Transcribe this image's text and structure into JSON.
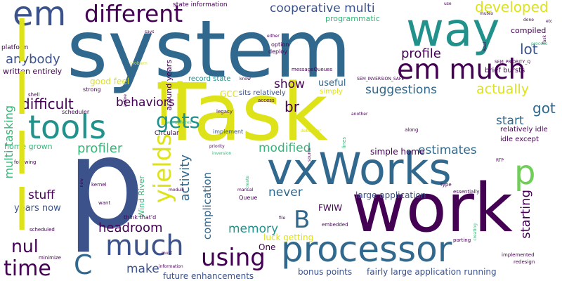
{
  "background": "#ffffff",
  "palette": {
    "dark_purple": "#440154",
    "indigo": "#3b528b",
    "blue": "#31688e",
    "teal": "#21918c",
    "green": "#35b779",
    "lime": "#6ece58",
    "yellow": "#dde318"
  },
  "words": [
    {
      "text": "system",
      "color": "#31688e"
    },
    {
      "text": "Task",
      "color": "#dde318"
    },
    {
      "text": "p",
      "color": "#3b528b"
    },
    {
      "text": "work",
      "color": "#440154"
    },
    {
      "text": "vxWorks",
      "color": "#31688e"
    },
    {
      "text": "processor",
      "color": "#31688e"
    },
    {
      "text": "way",
      "color": "#21918c"
    },
    {
      "text": "li",
      "color": "#dde318"
    },
    {
      "text": "em",
      "color": "#3b528b"
    },
    {
      "text": "different",
      "color": "#440154"
    },
    {
      "text": "tools",
      "color": "#21918c"
    },
    {
      "text": "em much",
      "color": "#440154"
    },
    {
      "text": "gets",
      "color": "#21918c"
    },
    {
      "text": "yields",
      "color": "#dde318"
    },
    {
      "text": "much",
      "color": "#3b528b"
    },
    {
      "text": "using",
      "color": "#440154"
    },
    {
      "text": "time",
      "color": "#440154"
    },
    {
      "text": "nul",
      "color": "#440154"
    },
    {
      "text": "C",
      "color": "#31688e"
    },
    {
      "text": "B",
      "color": "#31688e"
    },
    {
      "text": "p",
      "color": "#6ece58"
    },
    {
      "text": "cooperative multi",
      "color": "#3b528b"
    },
    {
      "text": "developed",
      "color": "#dde318"
    },
    {
      "text": "anybody",
      "color": "#3b528b"
    },
    {
      "text": "lot",
      "color": "#3b528b"
    },
    {
      "text": "profile",
      "color": "#440154"
    },
    {
      "text": "suggestions",
      "color": "#31688e"
    },
    {
      "text": "actually",
      "color": "#dde318"
    },
    {
      "text": "show",
      "color": "#440154"
    },
    {
      "text": "br",
      "color": "#440154"
    },
    {
      "text": "difficult",
      "color": "#440154"
    },
    {
      "text": "behaviors",
      "color": "#440154"
    },
    {
      "text": "got",
      "color": "#31688e"
    },
    {
      "text": "start",
      "color": "#31688e"
    },
    {
      "text": "modified",
      "color": "#35b779"
    },
    {
      "text": "estimates",
      "color": "#31688e"
    },
    {
      "text": "profiler",
      "color": "#35b779"
    },
    {
      "text": "activity",
      "color": "#31688e"
    },
    {
      "text": "headroom",
      "color": "#440154"
    },
    {
      "text": "never",
      "color": "#31688e"
    },
    {
      "text": "memory",
      "color": "#21918c"
    },
    {
      "text": "starting",
      "color": "#440154"
    },
    {
      "text": "make",
      "color": "#3b528b"
    },
    {
      "text": "multi tasking",
      "color": "#35b779"
    },
    {
      "text": "stuff",
      "color": "#440154"
    },
    {
      "text": "years now",
      "color": "#3b528b"
    },
    {
      "text": "complication",
      "color": "#31688e"
    },
    {
      "text": "future enhancements",
      "color": "#3b528b"
    },
    {
      "text": "bonus points",
      "color": "#3b528b"
    },
    {
      "text": "fairly large application running",
      "color": "#3b528b"
    },
    {
      "text": "luck getting",
      "color": "#dde318"
    },
    {
      "text": "One",
      "color": "#440154"
    },
    {
      "text": "FWIW",
      "color": "#440154"
    },
    {
      "text": "large application",
      "color": "#3b528b"
    },
    {
      "text": "simple home",
      "color": "#440154"
    },
    {
      "text": "useful",
      "color": "#31688e"
    },
    {
      "text": "good feel",
      "color": "#dde318"
    },
    {
      "text": "GCC",
      "color": "#dde318"
    },
    {
      "text": "around years",
      "color": "#440154"
    },
    {
      "text": "programmatic",
      "color": "#35b779"
    },
    {
      "text": "compiled",
      "color": "#440154"
    },
    {
      "text": "written entirely",
      "color": "#440154"
    },
    {
      "text": "home grown",
      "color": "#35b779"
    },
    {
      "text": "Wind River",
      "color": "#35b779"
    },
    {
      "text": "record state",
      "color": "#21918c"
    },
    {
      "text": "sits relatively",
      "color": "#3b528b"
    },
    {
      "text": "simply",
      "color": "#dde318"
    },
    {
      "text": "relatively idle",
      "color": "#440154"
    },
    {
      "text": "idle except",
      "color": "#440154"
    },
    {
      "text": "brief bursts",
      "color": "#440154"
    },
    {
      "text": "state information",
      "color": "#440154"
    },
    {
      "text": "platform",
      "color": "#440154"
    },
    {
      "text": "option",
      "color": "#440154"
    },
    {
      "text": "deploy",
      "color": "#440154"
    },
    {
      "text": "messageQueues",
      "color": "#440154"
    },
    {
      "text": "SEM_INVERSION_SAFE",
      "color": "#440154"
    },
    {
      "text": "SEM_PRIORITY_Q",
      "color": "#440154"
    },
    {
      "text": "Circular",
      "color": "#440154"
    },
    {
      "text": "implement",
      "color": "#3b528b"
    },
    {
      "text": "scheduler",
      "color": "#440154"
    },
    {
      "text": "strong",
      "color": "#440154"
    },
    {
      "text": "shell",
      "color": "#440154"
    },
    {
      "text": "Queue",
      "color": "#440154"
    },
    {
      "text": "kernel",
      "color": "#440154"
    },
    {
      "text": "want",
      "color": "#440154"
    },
    {
      "text": "new",
      "color": "#440154"
    },
    {
      "text": "scheduled",
      "color": "#440154"
    },
    {
      "text": "minimize",
      "color": "#440154"
    },
    {
      "text": "following",
      "color": "#440154"
    },
    {
      "text": "information",
      "color": "#440154"
    },
    {
      "text": "think that'd",
      "color": "#440154"
    },
    {
      "text": "embedded",
      "color": "#440154"
    },
    {
      "text": "type",
      "color": "#440154"
    },
    {
      "text": "porting",
      "color": "#440154"
    },
    {
      "text": "implemented",
      "color": "#440154"
    },
    {
      "text": "redesign",
      "color": "#440154"
    },
    {
      "text": "essentially",
      "color": "#440154"
    },
    {
      "text": "along",
      "color": "#440154"
    },
    {
      "text": "another",
      "color": "#440154"
    },
    {
      "text": "access",
      "color": "#440154"
    },
    {
      "text": "legacy",
      "color": "#440154"
    },
    {
      "text": "semaphores",
      "color": "#35b779"
    },
    {
      "text": "priority",
      "color": "#440154"
    },
    {
      "text": "inversion",
      "color": "#35b779"
    },
    {
      "text": "debugger",
      "color": "#dde318"
    },
    {
      "text": "manual",
      "color": "#440154"
    },
    {
      "text": "says",
      "color": "#440154"
    },
    {
      "text": "problem",
      "color": "#dde318"
    },
    {
      "text": "either",
      "color": "#440154"
    },
    {
      "text": "know",
      "color": "#440154"
    },
    {
      "text": "Real",
      "color": "#440154"
    },
    {
      "text": "use",
      "color": "#440154"
    },
    {
      "text": "mutex",
      "color": "#440154"
    },
    {
      "text": "done",
      "color": "#440154"
    },
    {
      "text": "etc",
      "color": "#440154"
    },
    {
      "text": "process",
      "color": "#35b779"
    },
    {
      "text": "file",
      "color": "#440154"
    },
    {
      "text": "must",
      "color": "#440154"
    },
    {
      "text": "module",
      "color": "#440154"
    },
    {
      "text": "create",
      "color": "#35b779"
    },
    {
      "text": "lines",
      "color": "#35b779"
    },
    {
      "text": "creating",
      "color": "#35b779"
    },
    {
      "text": "RTP",
      "color": "#440154"
    },
    {
      "text": "source",
      "color": "#440154"
    },
    {
      "text": "active",
      "color": "#440154"
    },
    {
      "text": "Task",
      "color": "#440154"
    },
    {
      "text": "l",
      "color": "#dde318"
    },
    {
      "text": "l",
      "color": "#dde318"
    },
    {
      "text": "l",
      "color": "#dde318"
    },
    {
      "text": "l",
      "color": "#dde318"
    }
  ]
}
